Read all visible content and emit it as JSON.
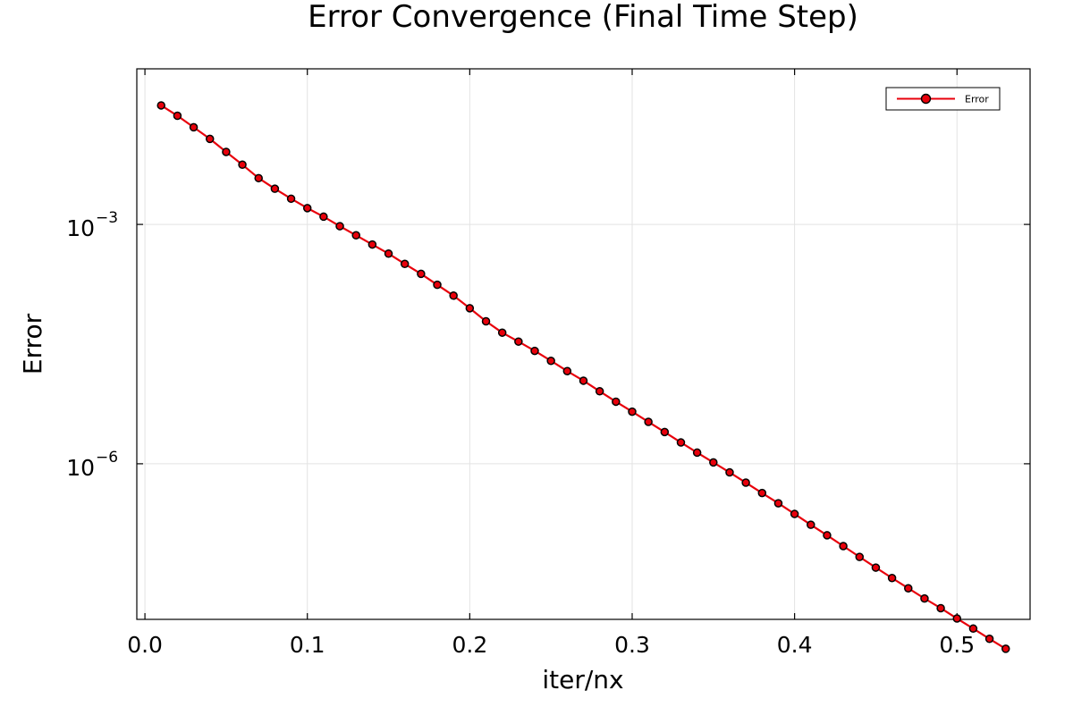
{
  "chart_data": {
    "type": "line",
    "title": "Error Convergence (Final Time Step)",
    "xlabel": "iter/nx",
    "ylabel": "Error",
    "xlim": [
      -0.005,
      0.545
    ],
    "ylim_log10": [
      -7.95,
      -1.05
    ],
    "y_scale": "log",
    "grid": true,
    "legend_position": "top-right",
    "x_ticks": [
      0.0,
      0.1,
      0.2,
      0.3,
      0.4,
      0.5
    ],
    "x_tick_labels": [
      "0.0",
      "0.1",
      "0.2",
      "0.3",
      "0.4",
      "0.5"
    ],
    "y_ticks_log10": [
      -3,
      -6
    ],
    "y_tick_labels": [
      {
        "base": "10",
        "exponent": "−3"
      },
      {
        "base": "10",
        "exponent": "−6"
      }
    ],
    "series": [
      {
        "name": "Error",
        "color": "#e8000b",
        "marker_fill": "#e8000b",
        "marker_edge": "#000000",
        "x": [
          0.01,
          0.02,
          0.03,
          0.04,
          0.05,
          0.06,
          0.07,
          0.08,
          0.09,
          0.1,
          0.11,
          0.12,
          0.13,
          0.14,
          0.15,
          0.16,
          0.17,
          0.18,
          0.19,
          0.2,
          0.21,
          0.22,
          0.23,
          0.24,
          0.25,
          0.26,
          0.27,
          0.28,
          0.29,
          0.3,
          0.31,
          0.32,
          0.33,
          0.34,
          0.35,
          0.36,
          0.37,
          0.38,
          0.39,
          0.4,
          0.41,
          0.42,
          0.43,
          0.44,
          0.45,
          0.46,
          0.47,
          0.48,
          0.49,
          0.5,
          0.51,
          0.52,
          0.53
        ],
        "y": [
          0.031,
          0.023,
          0.0165,
          0.0118,
          0.0081,
          0.0056,
          0.0038,
          0.0028,
          0.0021,
          0.0016,
          0.00125,
          0.00095,
          0.00073,
          0.00056,
          0.00043,
          0.00032,
          0.00024,
          0.000175,
          0.000128,
          8.9e-05,
          6.1e-05,
          4.4e-05,
          3.4e-05,
          2.6e-05,
          1.95e-05,
          1.45e-05,
          1.1e-05,
          8.1e-06,
          6e-06,
          4.5e-06,
          3.35e-06,
          2.5e-06,
          1.85e-06,
          1.38e-06,
          1.04e-06,
          7.8e-07,
          5.8e-07,
          4.3e-07,
          3.2e-07,
          2.35e-07,
          1.72e-07,
          1.27e-07,
          9.3e-08,
          6.8e-08,
          5e-08,
          3.7e-08,
          2.75e-08,
          2.05e-08,
          1.55e-08,
          1.15e-08,
          8.6e-09,
          6.4e-09,
          4.8e-09
        ]
      }
    ]
  }
}
